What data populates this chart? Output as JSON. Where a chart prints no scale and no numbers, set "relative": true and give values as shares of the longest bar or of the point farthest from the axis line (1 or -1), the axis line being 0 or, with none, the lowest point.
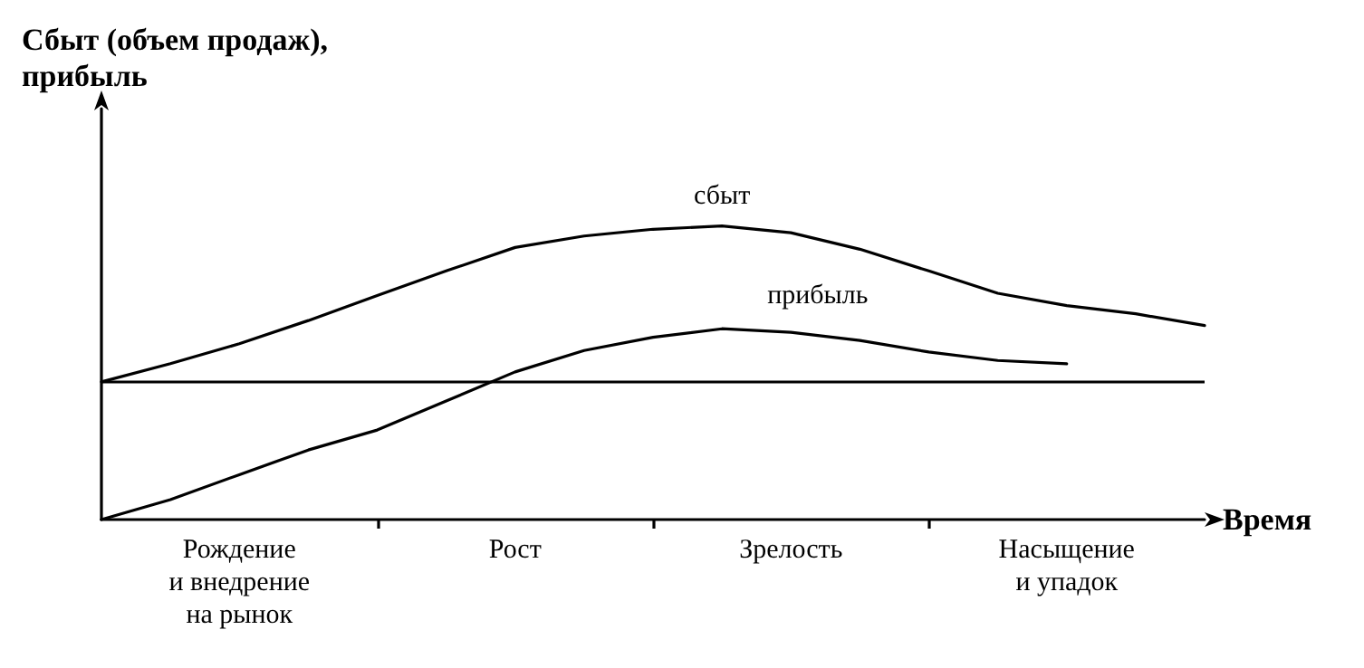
{
  "chart_data": {
    "type": "line",
    "relative": true,
    "ylabel": "Сбыт (объем продаж),\nприбыль",
    "xlabel": "Время",
    "categories": [
      null,
      null,
      "Рождение\nи внедрение\nна рынок",
      null,
      null,
      null,
      "Рост",
      null,
      null,
      null,
      "Зрелость",
      null,
      null,
      null,
      "Насыщение\nи упадок",
      null,
      null
    ],
    "tick_labels": "x",
    "grid": false,
    "legend": false,
    "marker": "none",
    "line_style": "solid",
    "ref_lines": [
      {
        "axis": "y",
        "value": 0.469,
        "color": "#000000"
      }
    ],
    "series": [
      {
        "name": "сбыт",
        "color": "#000000",
        "values": [
          0.469,
          0.531,
          0.599,
          0.678,
          0.763,
          0.847,
          0.927,
          0.966,
          0.989,
          1,
          0.977,
          0.921,
          0.847,
          0.771,
          0.729,
          0.701,
          0.661
        ]
      },
      {
        "name": "прибыль",
        "color": "#000000",
        "values": [
          0,
          0.068,
          0.153,
          0.237,
          0.305,
          0.404,
          0.503,
          0.576,
          0.621,
          0.65,
          0.638,
          0.61,
          0.571,
          0.542,
          0.531,
          null,
          null
        ]
      }
    ]
  }
}
